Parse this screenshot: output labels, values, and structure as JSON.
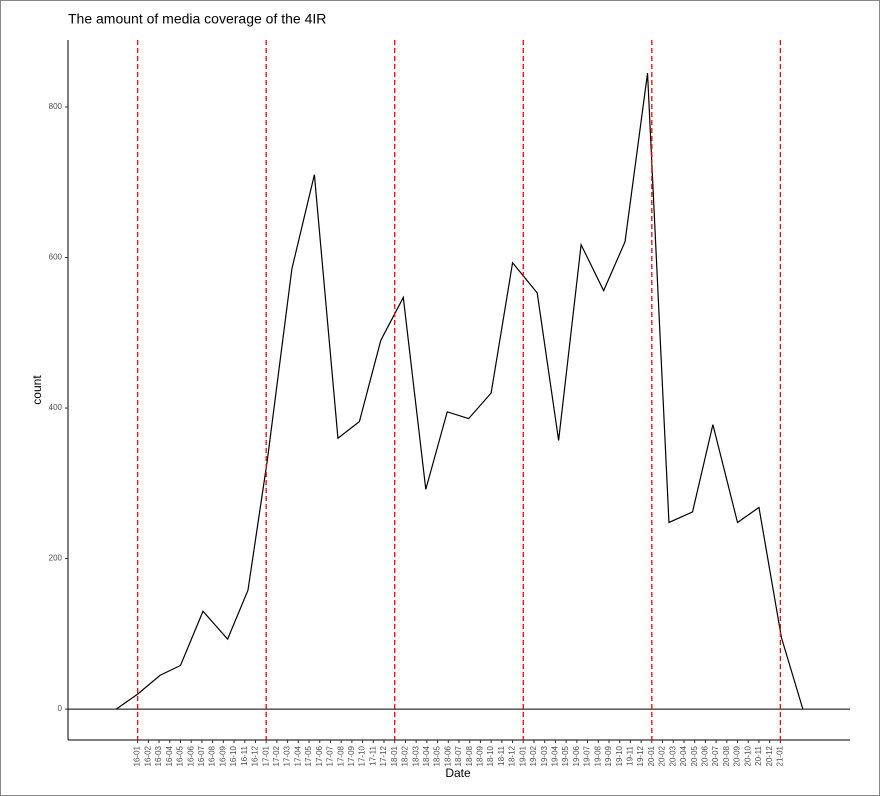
{
  "chart_data": {
    "type": "line",
    "title": "The amount of media coverage of the 4IR",
    "x_label": "Date",
    "y_label": "count",
    "x": [
      -2.0,
      0,
      2.1,
      4.0,
      6.1,
      8.4,
      10.3,
      12.1,
      14.4,
      16.5,
      18.7,
      20.7,
      22.7,
      24.8,
      26.9,
      28.9,
      30.9,
      33.0,
      35.0,
      37.3,
      39.3,
      41.4,
      43.5,
      45.5,
      47.6,
      49.6,
      51.8,
      53.7,
      56.0,
      58.0,
      60.1,
      62.1
    ],
    "values": [
      0,
      20,
      45,
      58,
      130,
      93,
      158,
      330,
      585,
      710,
      360,
      382,
      490,
      547,
      292,
      395,
      386,
      420,
      593,
      553,
      357,
      617,
      556,
      621,
      845,
      248,
      262,
      378,
      248,
      268,
      95,
      0
    ],
    "color": "#000000",
    "xlim": [
      -6.5,
      66.5
    ],
    "ylim": [
      -41,
      889
    ],
    "yticks": [
      0,
      200,
      400,
      600,
      800
    ],
    "xticks": [
      {
        "value": 0,
        "label": "16-01"
      },
      {
        "value": 1,
        "label": "16-02"
      },
      {
        "value": 2,
        "label": "16-03"
      },
      {
        "value": 3,
        "label": "16-04"
      },
      {
        "value": 4,
        "label": "16-05"
      },
      {
        "value": 5,
        "label": "16-06"
      },
      {
        "value": 6,
        "label": "16-07"
      },
      {
        "value": 7,
        "label": "16-08"
      },
      {
        "value": 8,
        "label": "16-09"
      },
      {
        "value": 9,
        "label": "16-10"
      },
      {
        "value": 10,
        "label": "16-11"
      },
      {
        "value": 11,
        "label": "16-12"
      },
      {
        "value": 12,
        "label": "17-01"
      },
      {
        "value": 13,
        "label": "17-02"
      },
      {
        "value": 14,
        "label": "17-03"
      },
      {
        "value": 15,
        "label": "17-04"
      },
      {
        "value": 16,
        "label": "17-05"
      },
      {
        "value": 17,
        "label": "17-06"
      },
      {
        "value": 18,
        "label": "17-07"
      },
      {
        "value": 19,
        "label": "17-08"
      },
      {
        "value": 20,
        "label": "17-09"
      },
      {
        "value": 21,
        "label": "17-10"
      },
      {
        "value": 22,
        "label": "17-11"
      },
      {
        "value": 23,
        "label": "17-12"
      },
      {
        "value": 24,
        "label": "18-01"
      },
      {
        "value": 25,
        "label": "18-02"
      },
      {
        "value": 26,
        "label": "18-03"
      },
      {
        "value": 27,
        "label": "18-04"
      },
      {
        "value": 28,
        "label": "18-05"
      },
      {
        "value": 29,
        "label": "18-06"
      },
      {
        "value": 30,
        "label": "18-07"
      },
      {
        "value": 31,
        "label": "18-08"
      },
      {
        "value": 32,
        "label": "18-09"
      },
      {
        "value": 33,
        "label": "18-10"
      },
      {
        "value": 34,
        "label": "18-11"
      },
      {
        "value": 35,
        "label": "18-12"
      },
      {
        "value": 36,
        "label": "19-01"
      },
      {
        "value": 37,
        "label": "19-02"
      },
      {
        "value": 38,
        "label": "19-03"
      },
      {
        "value": 39,
        "label": "19-04"
      },
      {
        "value": 40,
        "label": "19-05"
      },
      {
        "value": 41,
        "label": "19-06"
      },
      {
        "value": 42,
        "label": "19-07"
      },
      {
        "value": 43,
        "label": "19-08"
      },
      {
        "value": 44,
        "label": "19-09"
      },
      {
        "value": 45,
        "label": "19-10"
      },
      {
        "value": 46,
        "label": "19-11"
      },
      {
        "value": 47,
        "label": "19-12"
      },
      {
        "value": 48,
        "label": "20-01"
      },
      {
        "value": 49,
        "label": "20-02"
      },
      {
        "value": 50,
        "label": "20-03"
      },
      {
        "value": 51,
        "label": "20-04"
      },
      {
        "value": 52,
        "label": "20-05"
      },
      {
        "value": 53,
        "label": "20-06"
      },
      {
        "value": 54,
        "label": "20-07"
      },
      {
        "value": 55,
        "label": "20-08"
      },
      {
        "value": 56,
        "label": "20-09"
      },
      {
        "value": 57,
        "label": "20-10"
      },
      {
        "value": 58,
        "label": "20-11"
      },
      {
        "value": 59,
        "label": "20-12"
      },
      {
        "value": 60,
        "label": "21-01"
      }
    ],
    "vlines": [
      0,
      12,
      24,
      36,
      48,
      60
    ],
    "vline_color": "#ff0000",
    "hline": 0,
    "grid": false
  }
}
